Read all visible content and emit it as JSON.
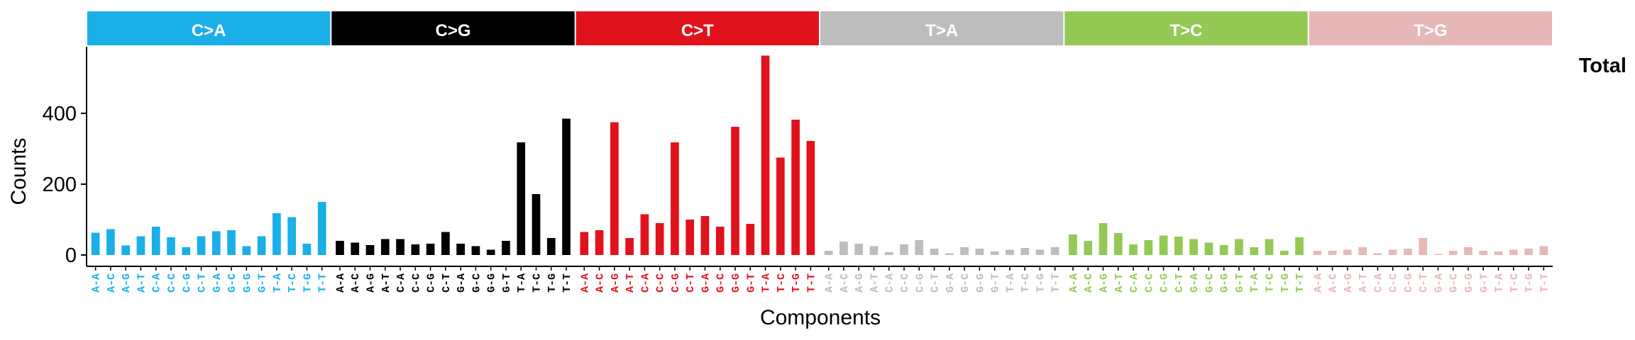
{
  "chart_data": {
    "type": "bar",
    "title": "",
    "panel_label": "Total",
    "xlabel": "Components",
    "ylabel": "Counts",
    "ylim": [
      0,
      580
    ],
    "yticks": [
      0,
      200,
      400
    ],
    "grid": false,
    "contexts": [
      "A-A",
      "A-C",
      "A-G",
      "A-T",
      "C-A",
      "C-C",
      "C-G",
      "C-T",
      "G-A",
      "G-C",
      "G-G",
      "G-T",
      "T-A",
      "T-C",
      "T-G",
      "T-T"
    ],
    "groups": [
      {
        "name": "C>A",
        "color": "#1BAFE8",
        "values": [
          63,
          73,
          27,
          53,
          80,
          50,
          22,
          53,
          67,
          70,
          25,
          53,
          118,
          107,
          32,
          150
        ]
      },
      {
        "name": "C>G",
        "color": "#000000",
        "values": [
          40,
          35,
          28,
          45,
          45,
          30,
          32,
          65,
          32,
          25,
          15,
          40,
          318,
          172,
          48,
          385
        ]
      },
      {
        "name": "C>T",
        "color": "#E0121C",
        "values": [
          65,
          70,
          375,
          48,
          115,
          90,
          318,
          100,
          110,
          80,
          362,
          88,
          563,
          275,
          382,
          322
        ]
      },
      {
        "name": "T>A",
        "color": "#BDBDBD",
        "values": [
          12,
          38,
          32,
          25,
          8,
          30,
          42,
          18,
          5,
          22,
          18,
          10,
          15,
          20,
          15,
          22
        ]
      },
      {
        "name": "T>C",
        "color": "#93C954",
        "values": [
          58,
          40,
          90,
          62,
          30,
          42,
          55,
          52,
          45,
          35,
          28,
          45,
          22,
          45,
          12,
          50
        ]
      },
      {
        "name": "T>G",
        "color": "#E6B8B7",
        "values": [
          12,
          12,
          15,
          22,
          5,
          15,
          18,
          48,
          3,
          12,
          22,
          12,
          10,
          15,
          18,
          25
        ]
      }
    ]
  }
}
